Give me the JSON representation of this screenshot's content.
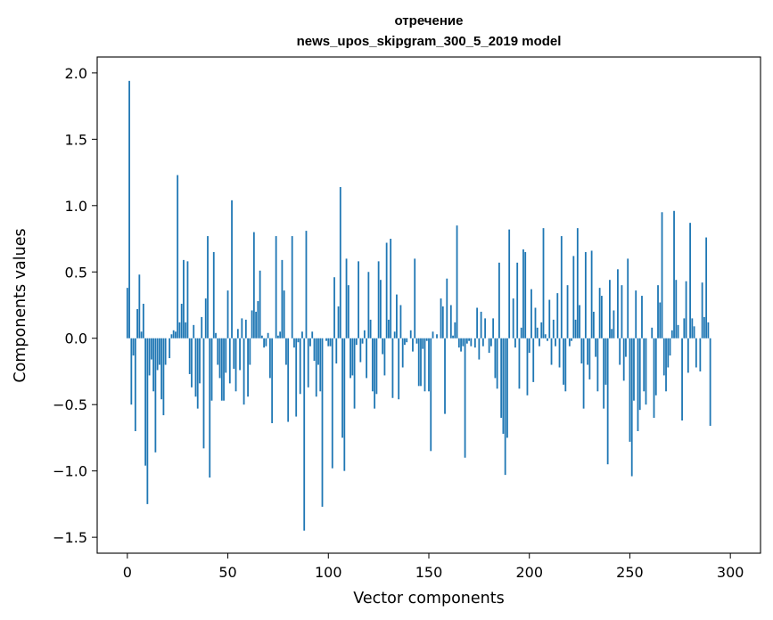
{
  "chart_data": {
    "type": "bar",
    "title": "отречение",
    "subtitle": "news_upos_skipgram_300_5_2019 model",
    "xlabel": "Vector components",
    "ylabel": "Components values",
    "xlim": [
      -15,
      315
    ],
    "ylim": [
      -1.62,
      2.12
    ],
    "xticks": [
      0,
      50,
      100,
      150,
      200,
      250,
      300
    ],
    "yticks": [
      -1.5,
      -1.0,
      -0.5,
      0.0,
      0.5,
      1.0,
      1.5,
      2.0
    ],
    "ytick_labels": [
      "−1.5",
      "−1.0",
      "−0.5",
      "0.0",
      "0.5",
      "1.0",
      "1.5",
      "2.0"
    ],
    "bar_color": "#1f77b4",
    "grid": false,
    "values": [
      0.38,
      1.94,
      -0.5,
      -0.13,
      -0.7,
      0.22,
      0.48,
      0.05,
      0.26,
      -0.96,
      -1.25,
      -0.28,
      -0.16,
      -0.4,
      -0.86,
      -0.24,
      -0.2,
      -0.46,
      -0.58,
      -0.2,
      0.0,
      -0.15,
      0.03,
      0.06,
      0.05,
      1.23,
      0.12,
      0.26,
      0.59,
      0.12,
      0.58,
      -0.27,
      -0.37,
      0.1,
      -0.44,
      -0.53,
      -0.34,
      0.16,
      -0.83,
      0.3,
      0.77,
      -1.05,
      -0.47,
      0.65,
      0.04,
      -0.2,
      -0.3,
      -0.47,
      -0.47,
      -0.26,
      0.36,
      -0.34,
      1.04,
      -0.23,
      -0.4,
      0.07,
      -0.24,
      0.15,
      -0.5,
      0.14,
      -0.44,
      -0.2,
      0.21,
      0.8,
      0.2,
      0.28,
      0.51,
      0.02,
      -0.07,
      -0.06,
      0.04,
      -0.3,
      -0.64,
      0.0,
      0.77,
      0.02,
      0.05,
      0.59,
      0.36,
      -0.2,
      -0.63,
      0.0,
      0.77,
      -0.07,
      -0.59,
      -0.03,
      -0.42,
      0.05,
      -1.45,
      0.81,
      -0.37,
      -0.06,
      0.05,
      -0.17,
      -0.44,
      -0.2,
      -0.4,
      -1.27,
      0.0,
      -0.02,
      -0.06,
      -0.06,
      -0.98,
      0.46,
      -0.19,
      0.24,
      1.14,
      -0.75,
      -1.0,
      0.6,
      0.4,
      -0.3,
      -0.28,
      -0.53,
      -0.05,
      0.58,
      -0.18,
      -0.04,
      0.06,
      -0.3,
      0.5,
      0.14,
      -0.4,
      -0.53,
      -0.42,
      0.58,
      0.44,
      -0.12,
      -0.28,
      0.72,
      0.14,
      0.75,
      -0.45,
      0.05,
      0.33,
      -0.46,
      0.25,
      -0.22,
      -0.05,
      -0.03,
      0.0,
      0.06,
      -0.1,
      0.6,
      -0.04,
      -0.36,
      -0.36,
      -0.08,
      -0.4,
      -0.02,
      -0.4,
      -0.85,
      0.05,
      0.0,
      0.03,
      0.0,
      0.3,
      0.24,
      -0.57,
      0.45,
      0.0,
      0.25,
      0.02,
      0.12,
      0.85,
      -0.07,
      -0.1,
      -0.06,
      -0.9,
      -0.04,
      -0.02,
      -0.06,
      0.0,
      -0.07,
      0.23,
      -0.16,
      0.2,
      -0.06,
      0.15,
      0.0,
      -0.11,
      -0.06,
      0.15,
      -0.3,
      -0.38,
      0.57,
      -0.6,
      -0.72,
      -1.03,
      -0.75,
      0.82,
      0.0,
      0.3,
      -0.07,
      0.57,
      -0.38,
      0.08,
      0.67,
      0.65,
      -0.43,
      -0.11,
      0.37,
      -0.33,
      0.23,
      0.08,
      -0.06,
      0.12,
      0.83,
      0.03,
      -0.02,
      0.29,
      -0.2,
      0.14,
      -0.06,
      0.34,
      -0.22,
      0.77,
      -0.35,
      -0.4,
      0.4,
      -0.06,
      -0.02,
      0.62,
      0.14,
      0.83,
      0.25,
      -0.19,
      -0.53,
      0.65,
      -0.2,
      -0.31,
      0.66,
      0.2,
      -0.14,
      -0.4,
      0.38,
      0.32,
      -0.53,
      -0.35,
      -0.95,
      0.44,
      0.07,
      0.21,
      0.0,
      0.52,
      -0.2,
      0.4,
      -0.32,
      -0.14,
      0.6,
      -0.78,
      -1.04,
      -0.47,
      0.36,
      -0.7,
      -0.54,
      0.32,
      -0.4,
      -0.5,
      0.0,
      0.0,
      0.08,
      -0.6,
      -0.43,
      0.4,
      0.27,
      0.95,
      -0.28,
      -0.4,
      -0.22,
      -0.13,
      0.06,
      0.96,
      0.44,
      0.1,
      0.0,
      -0.62,
      0.15,
      0.43,
      -0.26,
      0.87,
      0.15,
      0.09,
      -0.22,
      0.0,
      -0.25,
      0.42,
      0.16,
      0.76,
      0.12,
      -0.66
    ]
  }
}
